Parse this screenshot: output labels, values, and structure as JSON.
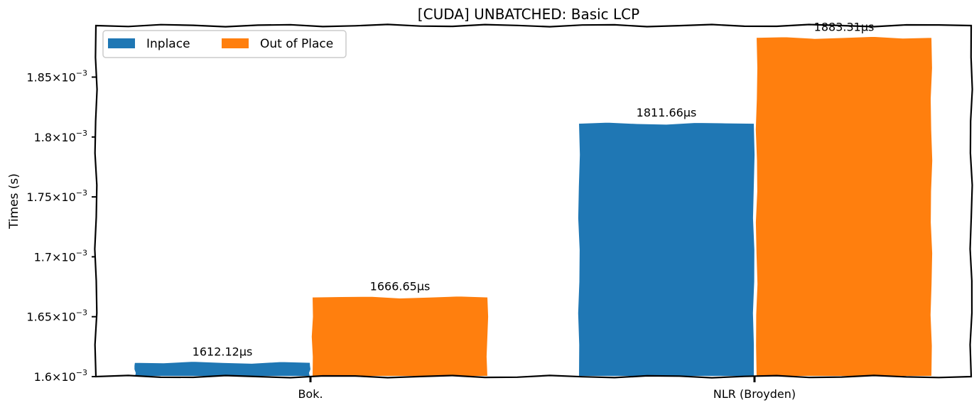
{
  "chart_data": {
    "type": "bar",
    "title": "[CUDA] UNBATCHED: Basic LCP",
    "xlabel": "",
    "ylabel": "Times (s)",
    "categories": [
      "Bok.",
      "NLR (Broyden)"
    ],
    "series": [
      {
        "name": "Inplace",
        "color": "#1f77b4",
        "values": [
          0.00161212,
          0.00181166
        ],
        "labels": [
          "1612.12μs",
          "1811.66μs"
        ]
      },
      {
        "name": "Out of Place",
        "color": "#ff7f0e",
        "values": [
          0.00166665,
          0.00188331
        ],
        "labels": [
          "1666.65μs",
          "1883.31μs"
        ]
      }
    ],
    "ylim": [
      0.0016,
      0.001893
    ],
    "yticks": [
      {
        "value": 0.0016,
        "mantissa": "1.6",
        "exp": "−3"
      },
      {
        "value": 0.00165,
        "mantissa": "1.65",
        "exp": "−3"
      },
      {
        "value": 0.0017,
        "mantissa": "1.7",
        "exp": "−3"
      },
      {
        "value": 0.00175,
        "mantissa": "1.75",
        "exp": "−3"
      },
      {
        "value": 0.0018,
        "mantissa": "1.8",
        "exp": "−3"
      },
      {
        "value": 0.00185,
        "mantissa": "1.85",
        "exp": "−3"
      }
    ],
    "tick_base": "×10",
    "legend": {
      "placement": "top-left",
      "columns": 2
    },
    "grid": false
  }
}
